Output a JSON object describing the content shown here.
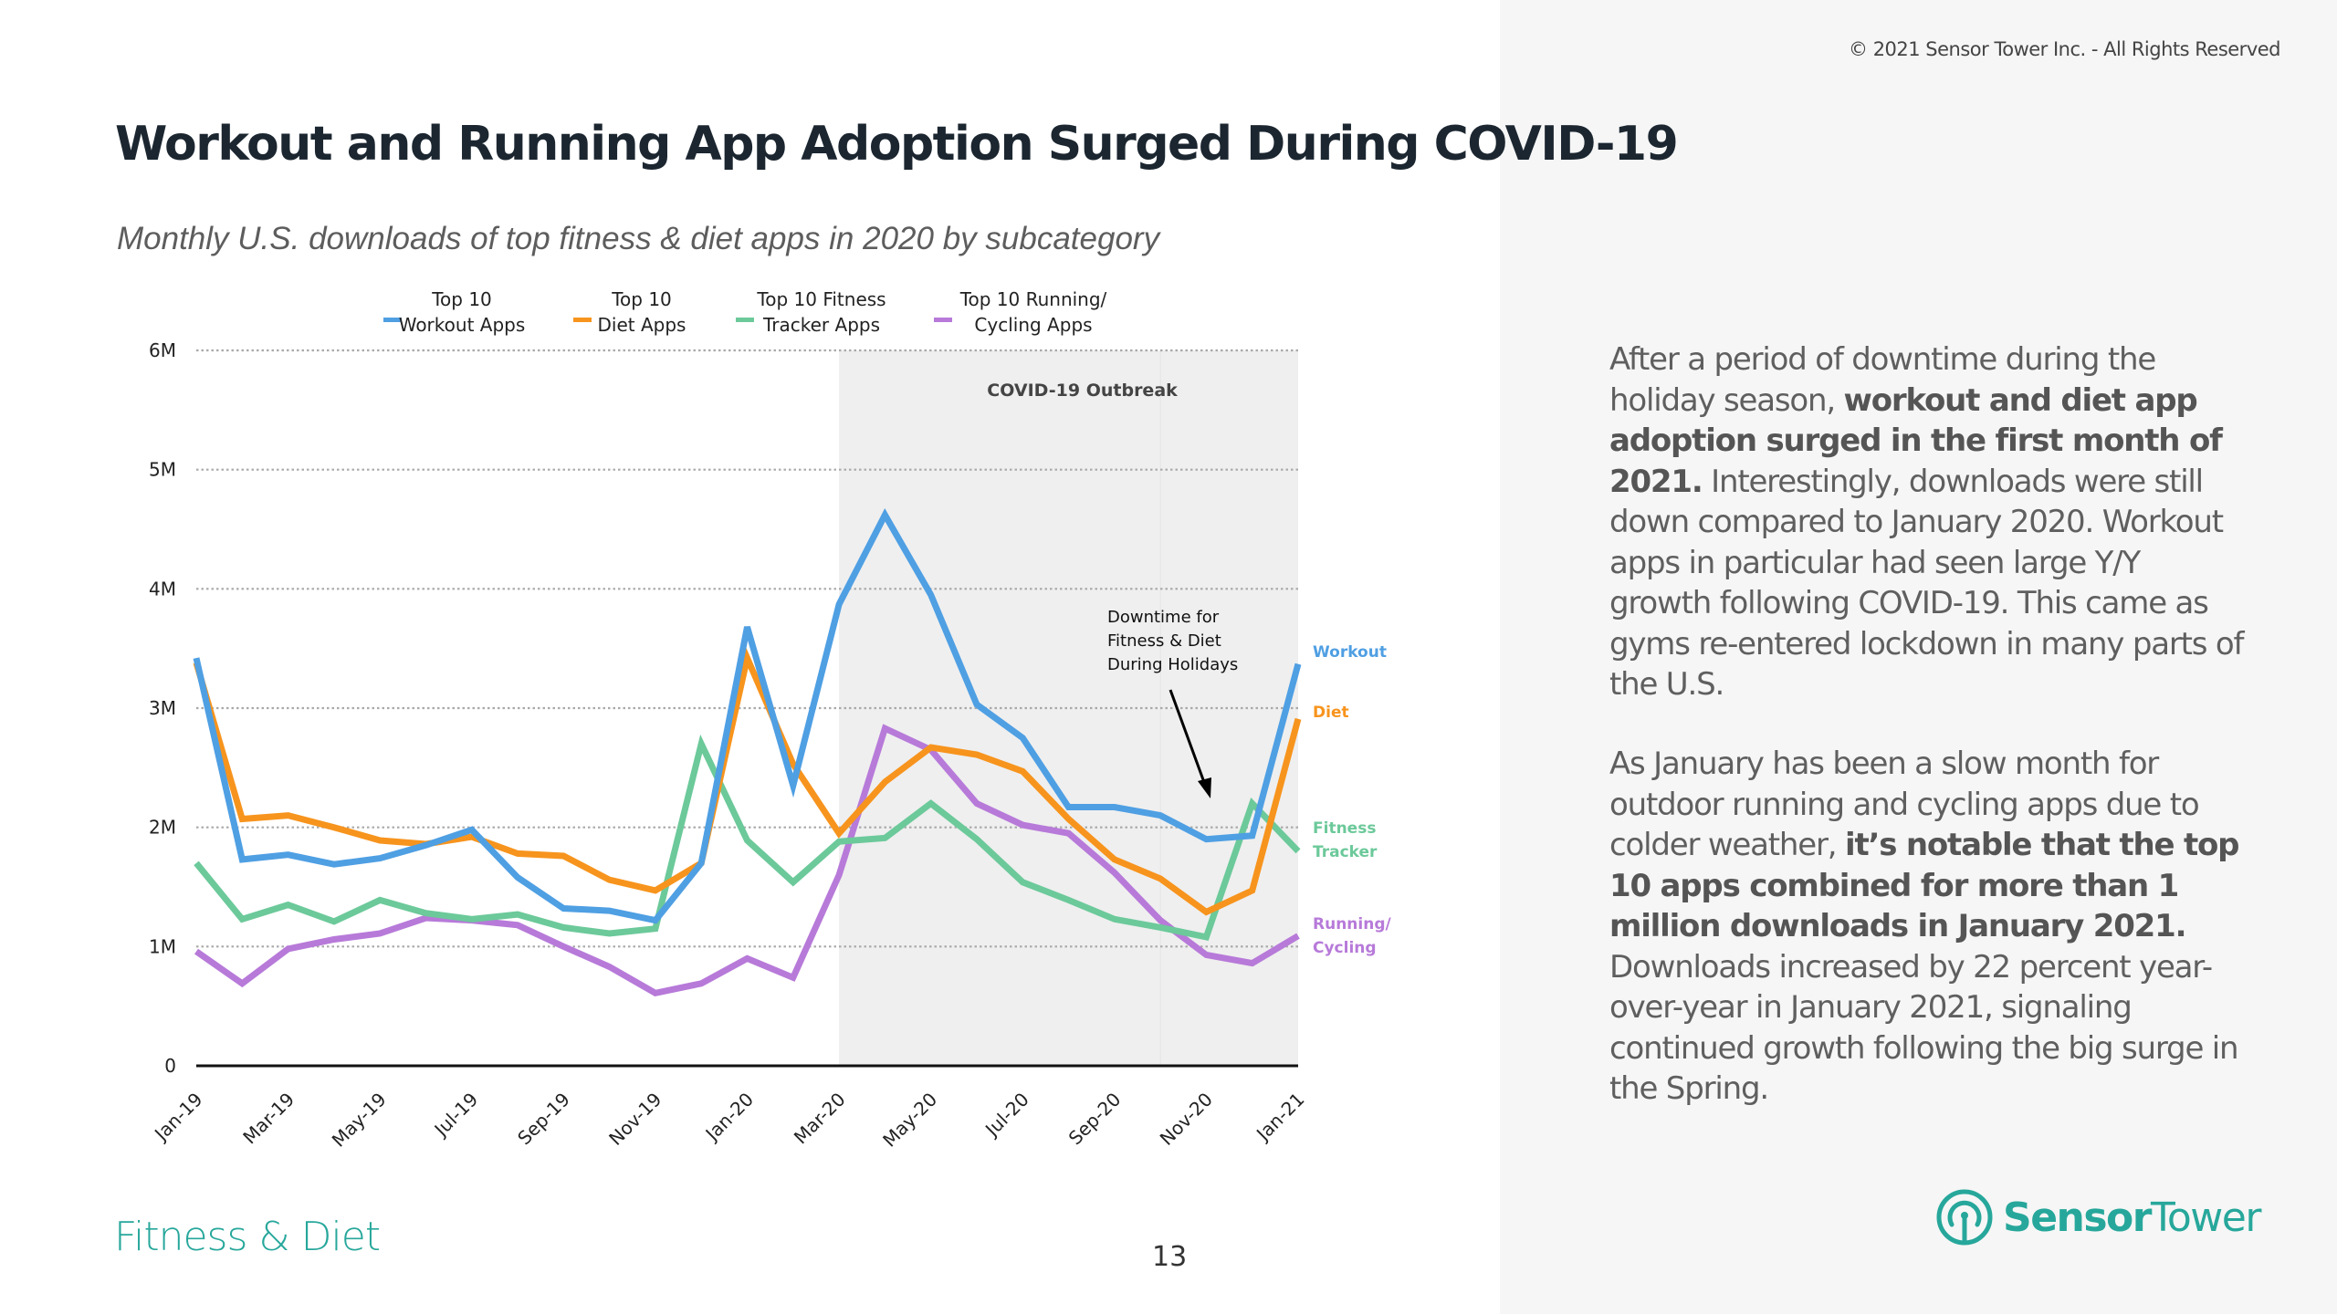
{
  "header": {
    "copyright": "© 2021 Sensor Tower Inc. - All Rights Reserved",
    "title": "Workout and Running App Adoption Surged During COVID-19",
    "subtitle": "Monthly U.S. downloads of top fitness & diet apps in 2020 by subcategory"
  },
  "commentary": {
    "p1": [
      {
        "text": "After a period of downtime during the holiday season, ",
        "bold": false
      },
      {
        "text": "workout and diet app adoption surged in the first month of 2021.",
        "bold": true
      },
      {
        "text": " Interestingly, downloads were still down compared to January 2020. Workout apps in particular had seen large Y/Y growth following COVID-19. This came as gyms re-entered lockdown in many parts of the U.S.",
        "bold": false
      }
    ],
    "p2": [
      {
        "text": "As January has been a slow month for outdoor running and cycling apps due to colder weather, ",
        "bold": false
      },
      {
        "text": "it’s notable that the top 10 apps combined for more than 1 million downloads in January 2021.",
        "bold": true
      },
      {
        "text": " Downloads increased by 22 percent year-over-year in January 2021, signaling continued growth following the big surge in the Spring.",
        "bold": false
      }
    ]
  },
  "footer": {
    "section": "Fitness & Diet",
    "page_number": "13",
    "logo_bold": "Sensor",
    "logo_regular": "Tower",
    "logo_icon": "sensor-tower-logo-icon"
  },
  "colors": {
    "workout": "#4f9fe3",
    "diet": "#f7941d",
    "fitness": "#6cc99a",
    "running": "#b77ad9",
    "brand": "#27a79b",
    "shade": "#efefef"
  },
  "chart_data": {
    "type": "line",
    "title": "Workout and Running App Adoption Surged During COVID-19",
    "subtitle": "Monthly U.S. downloads of top fitness & diet apps in 2020 by subcategory",
    "xlabel": "",
    "ylabel": "",
    "ylim": [
      0,
      6000000
    ],
    "yticks": [
      0,
      1000000,
      2000000,
      3000000,
      4000000,
      5000000,
      6000000
    ],
    "ytick_labels": [
      "0",
      "1M",
      "2M",
      "3M",
      "4M",
      "5M",
      "6M"
    ],
    "grid": "horizontal-dotted",
    "legend_position": "top",
    "x": [
      "Jan-19",
      "Feb-19",
      "Mar-19",
      "Apr-19",
      "May-19",
      "Jun-19",
      "Jul-19",
      "Aug-19",
      "Sep-19",
      "Oct-19",
      "Nov-19",
      "Dec-19",
      "Jan-20",
      "Feb-20",
      "Mar-20",
      "Apr-20",
      "May-20",
      "Jun-20",
      "Jul-20",
      "Aug-20",
      "Sep-20",
      "Oct-20",
      "Nov-20",
      "Dec-20",
      "Jan-21"
    ],
    "xtick_labels": [
      "Jan-19",
      "Mar-19",
      "May-19",
      "Jul-19",
      "Sep-19",
      "Nov-19",
      "Jan-20",
      "Mar-20",
      "May-20",
      "Jul-20",
      "Sep-20",
      "Nov-20",
      "Jan-21"
    ],
    "series": [
      {
        "key": "workout",
        "name": "Top 10 Workout Apps",
        "legend_lines": [
          "Top 10",
          "Workout Apps"
        ],
        "end_label": [
          "Workout"
        ],
        "values": [
          3420000,
          1730000,
          1770000,
          1690000,
          1740000,
          1850000,
          1980000,
          1580000,
          1320000,
          1300000,
          1220000,
          1700000,
          3680000,
          2350000,
          3870000,
          4620000,
          3950000,
          3030000,
          2750000,
          2170000,
          2170000,
          2100000,
          1900000,
          1930000,
          3370000
        ]
      },
      {
        "key": "diet",
        "name": "Top 10 Diet Apps",
        "legend_lines": [
          "Top 10",
          "Diet Apps"
        ],
        "end_label": [
          "Diet"
        ],
        "values": [
          3380000,
          2070000,
          2100000,
          2000000,
          1890000,
          1860000,
          1920000,
          1780000,
          1760000,
          1560000,
          1470000,
          1700000,
          3420000,
          2530000,
          1950000,
          2380000,
          2670000,
          2610000,
          2470000,
          2070000,
          1730000,
          1570000,
          1290000,
          1470000,
          2910000
        ]
      },
      {
        "key": "fitness",
        "name": "Top 10 Fitness Tracker Apps",
        "legend_lines": [
          "Top 10 Fitness",
          "Tracker Apps"
        ],
        "end_label": [
          "Fitness",
          "Tracker"
        ],
        "values": [
          1700000,
          1230000,
          1350000,
          1210000,
          1390000,
          1280000,
          1230000,
          1270000,
          1160000,
          1110000,
          1150000,
          2700000,
          1890000,
          1540000,
          1880000,
          1910000,
          2200000,
          1900000,
          1540000,
          1390000,
          1230000,
          1160000,
          1080000,
          2200000,
          1800000
        ]
      },
      {
        "key": "running",
        "name": "Top 10 Running/Cycling Apps",
        "legend_lines": [
          "Top 10 Running/",
          "Cycling Apps"
        ],
        "end_label": [
          "Running/",
          "Cycling"
        ],
        "values": [
          960000,
          690000,
          980000,
          1060000,
          1110000,
          1240000,
          1220000,
          1180000,
          1000000,
          830000,
          610000,
          690000,
          900000,
          740000,
          1600000,
          2830000,
          2650000,
          2200000,
          2020000,
          1950000,
          1620000,
          1220000,
          930000,
          860000,
          1090000
        ]
      }
    ],
    "annotations": [
      {
        "type": "shaded-region",
        "label": "COVID-19 Outbreak",
        "x_start": "Mar-20",
        "x_end": "Jan-21"
      },
      {
        "type": "arrow-note",
        "lines": [
          "Downtime for",
          "Fitness & Diet",
          "During Holidays"
        ],
        "points_to": "Nov-20"
      }
    ]
  }
}
